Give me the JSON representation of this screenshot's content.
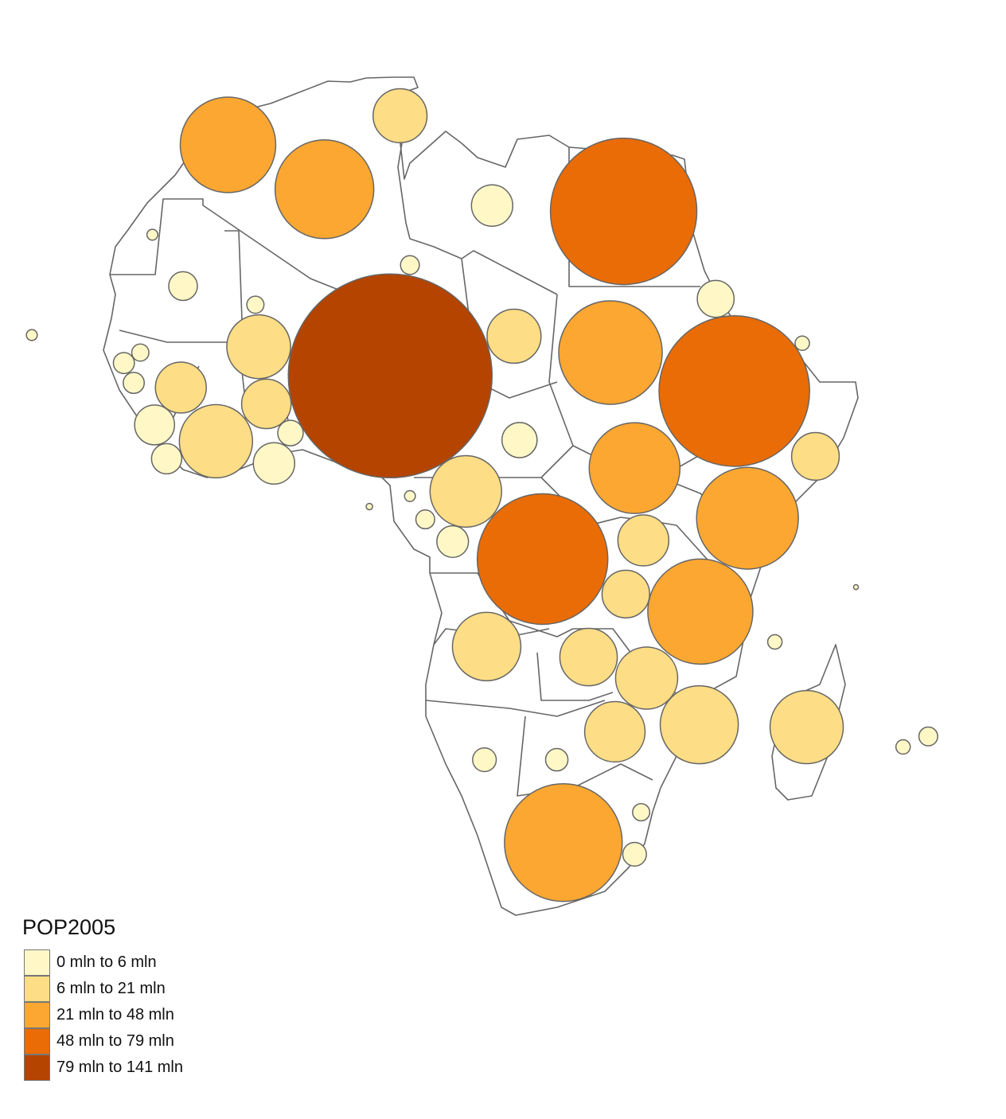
{
  "legend": {
    "title": "POP2005",
    "classes": [
      {
        "label": "0 mln to 6 mln",
        "min": 0,
        "max": 6,
        "color": "#FFF8C6"
      },
      {
        "label": "6 mln to 21 mln",
        "min": 6,
        "max": 21,
        "color": "#FDDD85"
      },
      {
        "label": "21 mln to 48 mln",
        "min": 21,
        "max": 48,
        "color": "#FBA731"
      },
      {
        "label": "48 mln to 79 mln",
        "min": 48,
        "max": 79,
        "color": "#E96C07"
      },
      {
        "label": "79 mln to 141 mln",
        "min": 79,
        "max": 141,
        "color": "#B44400"
      }
    ]
  },
  "chart_data": {
    "type": "bubble-map",
    "region": "Africa",
    "variable": "POP2005",
    "unit": "mln",
    "max_value": 141,
    "points": [
      {
        "lon": -6.5,
        "lat": 31.2,
        "pop": 31.0
      },
      {
        "lon": 2.3,
        "lat": 27.4,
        "pop": 33.1
      },
      {
        "lon": 9.2,
        "lat": 33.7,
        "pop": 9.9
      },
      {
        "lon": 17.6,
        "lat": 26.0,
        "pop": 5.8
      },
      {
        "lon": 29.6,
        "lat": 25.5,
        "pop": 72.8
      },
      {
        "lon": -13.4,
        "lat": 23.5,
        "pop": 0.4
      },
      {
        "lon": -10.6,
        "lat": 19.1,
        "pop": 2.8
      },
      {
        "lon": -4.0,
        "lat": 17.5,
        "pop": 1.0
      },
      {
        "lon": 10.1,
        "lat": 20.9,
        "pop": 1.2
      },
      {
        "lon": -3.7,
        "lat": 13.9,
        "pop": 13.8
      },
      {
        "lon": 8.3,
        "lat": 11.4,
        "pop": 141
      },
      {
        "lon": 19.6,
        "lat": 14.8,
        "pop": 9.9
      },
      {
        "lon": 28.4,
        "lat": 13.4,
        "pop": 36.4
      },
      {
        "lon": 39.7,
        "lat": 10.1,
        "pop": 77
      },
      {
        "lon": 38.0,
        "lat": 18.0,
        "pop": 4.6
      },
      {
        "lon": 45.9,
        "lat": 14.2,
        "pop": 0.7
      },
      {
        "lon": 47.1,
        "lat": 4.5,
        "pop": 7.7
      },
      {
        "lon": 30.6,
        "lat": 3.5,
        "pop": 28
      },
      {
        "lon": 40.9,
        "lat": -0.8,
        "pop": 35.2
      },
      {
        "lon": 22.2,
        "lat": -4.3,
        "pop": 57.9
      },
      {
        "lon": 15.2,
        "lat": 1.5,
        "pop": 17.4
      },
      {
        "lon": 20.1,
        "lat": 5.9,
        "pop": 4.2
      },
      {
        "lon": 11.5,
        "lat": -0.9,
        "pop": 1.2
      },
      {
        "lon": 10.1,
        "lat": 1.1,
        "pop": 0.4
      },
      {
        "lon": 6.4,
        "lat": 0.2,
        "pop": 0.14
      },
      {
        "lon": 14.0,
        "lat": -2.8,
        "pop": 3.4
      },
      {
        "lon": 31.4,
        "lat": -2.7,
        "pop": 8.8
      },
      {
        "lon": 29.8,
        "lat": -7.3,
        "pop": 7.7
      },
      {
        "lon": 36.6,
        "lat": -8.8,
        "pop": 37.5
      },
      {
        "lon": 17.1,
        "lat": -11.8,
        "pop": 15.9
      },
      {
        "lon": 26.4,
        "lat": -12.7,
        "pop": 11.2
      },
      {
        "lon": 31.7,
        "lat": -14.5,
        "pop": 13.1
      },
      {
        "lon": 28.8,
        "lat": -19.1,
        "pop": 12.4
      },
      {
        "lon": 36.5,
        "lat": -18.5,
        "pop": 20.7
      },
      {
        "lon": 46.3,
        "lat": -18.7,
        "pop": 18.2
      },
      {
        "lon": 43.4,
        "lat": -11.4,
        "pop": 0.7
      },
      {
        "lon": 55.1,
        "lat": -20.4,
        "pop": 0.7
      },
      {
        "lon": 57.4,
        "lat": -19.5,
        "pop": 1.2
      },
      {
        "lon": 16.9,
        "lat": -21.5,
        "pop": 1.9
      },
      {
        "lon": 23.5,
        "lat": -21.5,
        "pop": 1.7
      },
      {
        "lon": 24.1,
        "lat": -28.6,
        "pop": 47.1
      },
      {
        "lon": 30.6,
        "lat": -29.6,
        "pop": 1.9
      },
      {
        "lon": 31.2,
        "lat": -26.0,
        "pop": 1.0
      },
      {
        "lon": -24.4,
        "lat": 14.9,
        "pop": 0.4
      },
      {
        "lon": -16.0,
        "lat": 12.5,
        "pop": 1.5
      },
      {
        "lon": -14.5,
        "lat": 13.4,
        "pop": 1.0
      },
      {
        "lon": -15.1,
        "lat": 10.8,
        "pop": 1.5
      },
      {
        "lon": -10.8,
        "lat": 10.4,
        "pop": 8.8
      },
      {
        "lon": -13.2,
        "lat": 7.2,
        "pop": 5.4
      },
      {
        "lon": -7.6,
        "lat": 5.8,
        "pop": 18.2
      },
      {
        "lon": -12.1,
        "lat": 4.3,
        "pop": 3.1
      },
      {
        "lon": -3.0,
        "lat": 9.0,
        "pop": 8.3
      },
      {
        "lon": -2.3,
        "lat": 3.9,
        "pop": 5.8
      },
      {
        "lon": -0.8,
        "lat": 6.5,
        "pop": 2.2
      },
      {
        "lon": 50.8,
        "lat": -6.7,
        "pop": 0.08
      }
    ]
  }
}
